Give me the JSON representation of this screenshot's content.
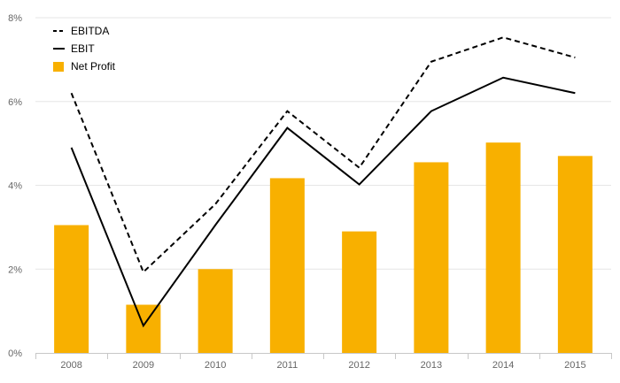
{
  "chart_data": {
    "type": "bar",
    "categories": [
      "2008",
      "2009",
      "2010",
      "2011",
      "2012",
      "2013",
      "2014",
      "2015"
    ],
    "series": [
      {
        "name": "Net Profit",
        "type": "bar",
        "color": "#F8B000",
        "values": [
          3.05,
          1.15,
          2.0,
          4.17,
          2.9,
          4.55,
          5.02,
          4.7
        ]
      },
      {
        "name": "EBIT",
        "type": "line",
        "style": "solid",
        "color": "#000000",
        "values": [
          4.9,
          0.65,
          3.05,
          5.37,
          4.02,
          5.77,
          6.57,
          6.2
        ]
      },
      {
        "name": "EBITDA",
        "type": "line",
        "style": "dashed",
        "color": "#000000",
        "values": [
          6.2,
          1.93,
          3.55,
          5.77,
          4.42,
          6.95,
          7.53,
          7.05
        ]
      }
    ],
    "y_ticks": [
      "0%",
      "2%",
      "4%",
      "6%",
      "8%"
    ],
    "y_tick_values": [
      0,
      2,
      4,
      6,
      8
    ],
    "ylim": [
      0,
      8
    ],
    "grid": true,
    "legend": {
      "placement": "top-left",
      "entries": [
        "EBITDA",
        "EBIT",
        "Net Profit"
      ]
    }
  }
}
